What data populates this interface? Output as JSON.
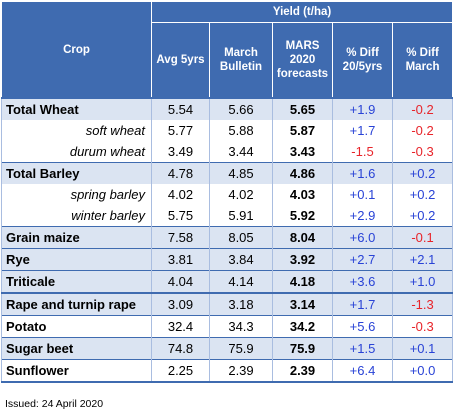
{
  "header": {
    "crop": "Crop",
    "yield_group": "Yield (t/ha)",
    "columns": [
      "Avg 5yrs",
      "March Bulletin",
      "MARS 2020 forecasts",
      "% Diff 20/5yrs",
      "% Diff March"
    ]
  },
  "rows": [
    {
      "crop": "Total Wheat",
      "avg": "5.54",
      "march": "5.66",
      "forecast": "5.65",
      "diff5": "+1.9",
      "diffm": "-0.2"
    },
    {
      "crop": "soft wheat",
      "avg": "5.77",
      "march": "5.88",
      "forecast": "5.87",
      "diff5": "+1.7",
      "diffm": "-0.2"
    },
    {
      "crop": "durum wheat",
      "avg": "3.49",
      "march": "3.44",
      "forecast": "3.43",
      "diff5": "-1.5",
      "diffm": "-0.3"
    },
    {
      "crop": "Total Barley",
      "avg": "4.78",
      "march": "4.85",
      "forecast": "4.86",
      "diff5": "+1.6",
      "diffm": "+0.2"
    },
    {
      "crop": "spring barley",
      "avg": "4.02",
      "march": "4.02",
      "forecast": "4.03",
      "diff5": "+0.1",
      "diffm": "+0.2"
    },
    {
      "crop": "winter barley",
      "avg": "5.75",
      "march": "5.91",
      "forecast": "5.92",
      "diff5": "+2.9",
      "diffm": "+0.2"
    },
    {
      "crop": "Grain maize",
      "avg": "7.58",
      "march": "8.05",
      "forecast": "8.04",
      "diff5": "+6.0",
      "diffm": "-0.1"
    },
    {
      "crop": "Rye",
      "avg": "3.81",
      "march": "3.84",
      "forecast": "3.92",
      "diff5": "+2.7",
      "diffm": "+2.1"
    },
    {
      "crop": "Triticale",
      "avg": "4.04",
      "march": "4.14",
      "forecast": "4.18",
      "diff5": "+3.6",
      "diffm": "+1.0"
    },
    {
      "crop": "Rape and turnip rape",
      "avg": "3.09",
      "march": "3.18",
      "forecast": "3.14",
      "diff5": "+1.7",
      "diffm": "-1.3"
    },
    {
      "crop": "Potato",
      "avg": "32.4",
      "march": "34.3",
      "forecast": "34.2",
      "diff5": "+5.6",
      "diffm": "-0.3"
    },
    {
      "crop": "Sugar beet",
      "avg": "74.8",
      "march": "75.9",
      "forecast": "75.9",
      "diff5": "+1.5",
      "diffm": "+0.1"
    },
    {
      "crop": "Sunflower",
      "avg": "2.25",
      "march": "2.39",
      "forecast": "2.39",
      "diff5": "+6.4",
      "diffm": "+0.0"
    }
  ],
  "footnote": "Issued: 24 April 2020",
  "colors": {
    "header": "#3f6bb0",
    "band": "#dbe4f2",
    "positive": "#2943d6",
    "negative": "#e8242a"
  }
}
